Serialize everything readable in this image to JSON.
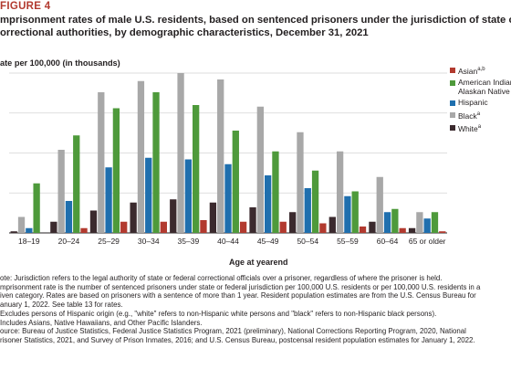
{
  "header": {
    "figure_label": "FIGURE 4",
    "title_lines": [
      "mprisonment rates of male U.S. residents, based on sentenced prisoners under the jurisdiction of state or federal",
      "orrectional authorities, by demographic characteristics, December 31, 2021"
    ]
  },
  "chart_data": {
    "type": "bar",
    "ylabel": "ate per 100,000 (in thousands)",
    "xlabel": "Age at yearend",
    "ylim": [
      0,
      10
    ],
    "yticks": [
      "",
      "",
      "",
      "",
      ""
    ],
    "grid": true,
    "legend_position": "right",
    "categories": [
      "18–19",
      "20–24",
      "25–29",
      "30–34",
      "35–39",
      "40–44",
      "45–49",
      "50–54",
      "55–59",
      "60–64",
      "65 or older"
    ],
    "series": [
      {
        "name": "White",
        "sup": "a",
        "color": "#3b2a2e",
        "values": [
          0.1,
          0.7,
          1.4,
          1.9,
          2.1,
          1.9,
          1.6,
          1.3,
          1.0,
          0.7,
          0.3
        ]
      },
      {
        "name": "Black",
        "sup": "a",
        "color": "#a8a8a8",
        "values": [
          1.0,
          5.2,
          8.8,
          9.5,
          10.0,
          9.6,
          7.9,
          6.3,
          5.1,
          3.5,
          1.3
        ]
      },
      {
        "name": "Hispanic",
        "sup": "",
        "color": "#1f6fae",
        "values": [
          0.3,
          2.0,
          4.1,
          4.7,
          4.6,
          4.3,
          3.6,
          2.8,
          2.3,
          1.3,
          0.9
        ]
      },
      {
        "name": "American Indian/ Alaskan Native",
        "sup": "",
        "color": "#4e9a3b",
        "values": [
          3.1,
          6.1,
          7.8,
          8.8,
          8.0,
          6.4,
          5.1,
          3.9,
          2.6,
          1.5,
          1.3
        ]
      },
      {
        "name": "Asian",
        "sup": "a,b",
        "color": "#b23a2f",
        "values": [
          0.0,
          0.3,
          0.7,
          0.7,
          0.8,
          0.7,
          0.7,
          0.6,
          0.4,
          0.3,
          0.1
        ]
      }
    ],
    "legend_order": [
      4,
      3,
      2,
      1,
      0
    ]
  },
  "notes": [
    "ote: Jurisdiction refers to the legal authority of state or federal correctional officials over a prisoner, regardless of where the prisoner is held.",
    "mprisonment rate is the number of sentenced prisoners under state or federal jurisdiction per 100,000 U.S. residents or per 100,000 U.S. residents in a",
    "iven category. Rates are based on prisoners with a sentence of more than 1 year. Resident population estimates are from the U.S. Census Bureau for",
    "anuary 1, 2022. See table 13 for rates.",
    "Excludes persons of Hispanic origin (e.g., \"white\" refers to non-Hispanic white persons and \"black\" refers to non-Hispanic black persons).",
    "Includes Asians, Native Hawaiians, and Other Pacific Islanders.",
    "ource: Bureau of Justice Statistics, Federal Justice Statistics Program, 2021 (preliminary), National Corrections Reporting Program, 2020, National",
    "risoner Statistics, 2021, and Survey of Prison Inmates, 2016; and U.S. Census Bureau, postcensal resident population estimates for January 1, 2022."
  ]
}
